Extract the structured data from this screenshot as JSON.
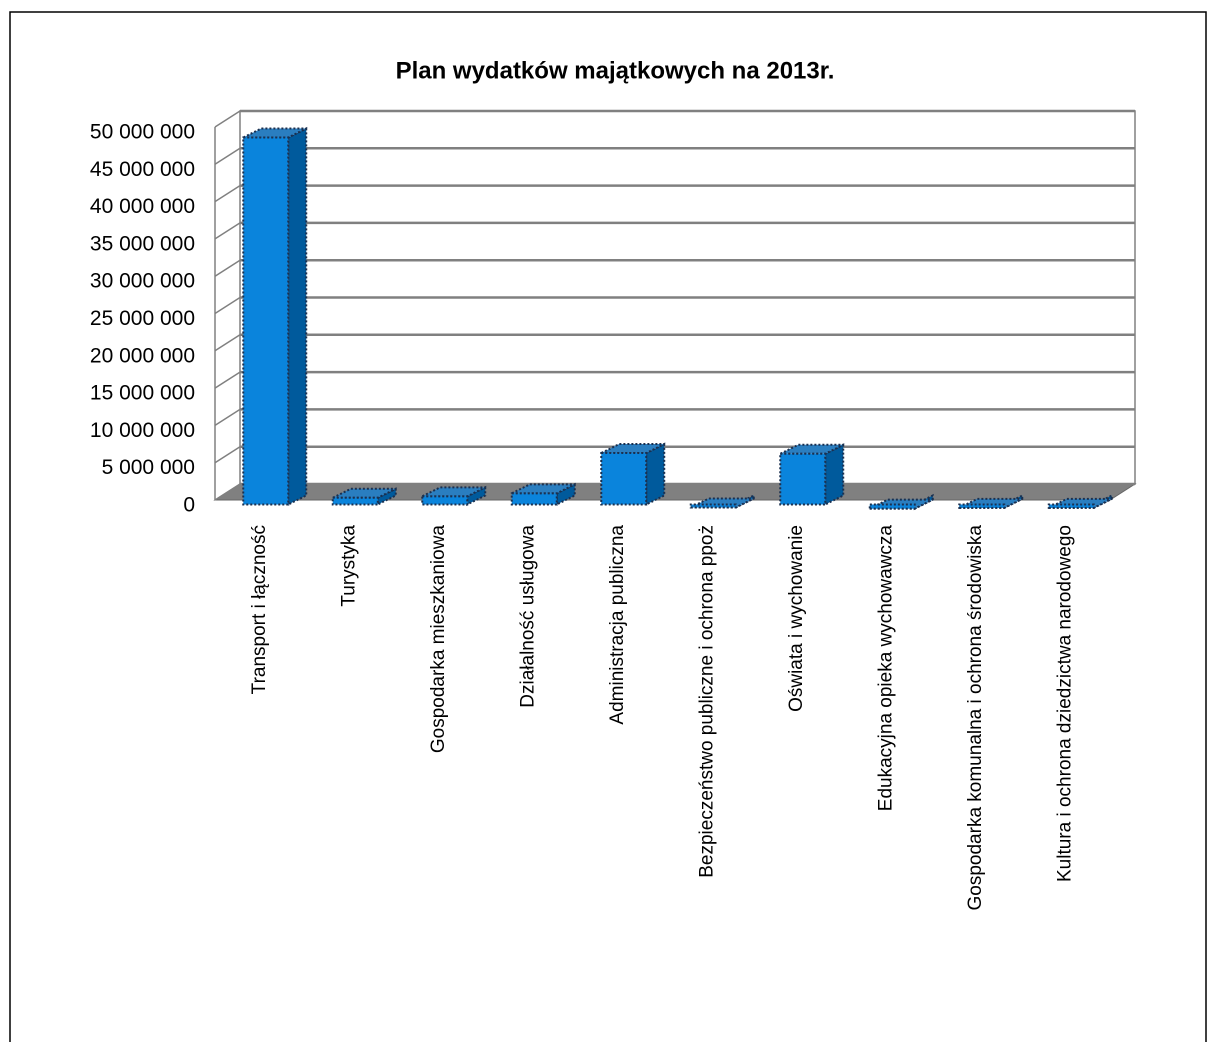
{
  "chart_data": {
    "type": "bar3d",
    "title": "Plan wydatków majątkowych na 2013r.",
    "categories": [
      "Transport i łączność",
      "Turystyka",
      "Gospodarka mieszkaniowa",
      "Działalność usługowa",
      "Administracja publiczna",
      "Bezpieczeństwo publiczne i ochrona ppoż",
      "Oświata i wychowanie",
      "Edukacyjna opieka wychowawcza",
      "Gospodarka komunalna i ochrona środowiska",
      "Kultura i ochrona dziedzictwa narodowego"
    ],
    "values": [
      49800000,
      1500000,
      1700000,
      2100000,
      7500000,
      200000,
      7400000,
      50000,
      150000,
      150000
    ],
    "color": "#0a84dc",
    "ylim": [
      0,
      50000000
    ],
    "yticks": [
      0,
      {
        "value": 5000000,
        "label": "5 000 000"
      },
      {
        "value": 10000000,
        "label": "10 000 000"
      },
      {
        "value": 15000000,
        "label": "15 000 000"
      },
      {
        "value": 20000000,
        "label": "20 000 000"
      },
      {
        "value": 25000000,
        "label": "25 000 000"
      },
      {
        "value": 30000000,
        "label": "30 000 000"
      },
      {
        "value": 35000000,
        "label": "35 000 000"
      },
      {
        "value": 40000000,
        "label": "40 000 000"
      },
      {
        "value": 45000000,
        "label": "45 000 000"
      },
      {
        "value": 50000000,
        "label": "50 000 000"
      }
    ],
    "grid": true
  }
}
